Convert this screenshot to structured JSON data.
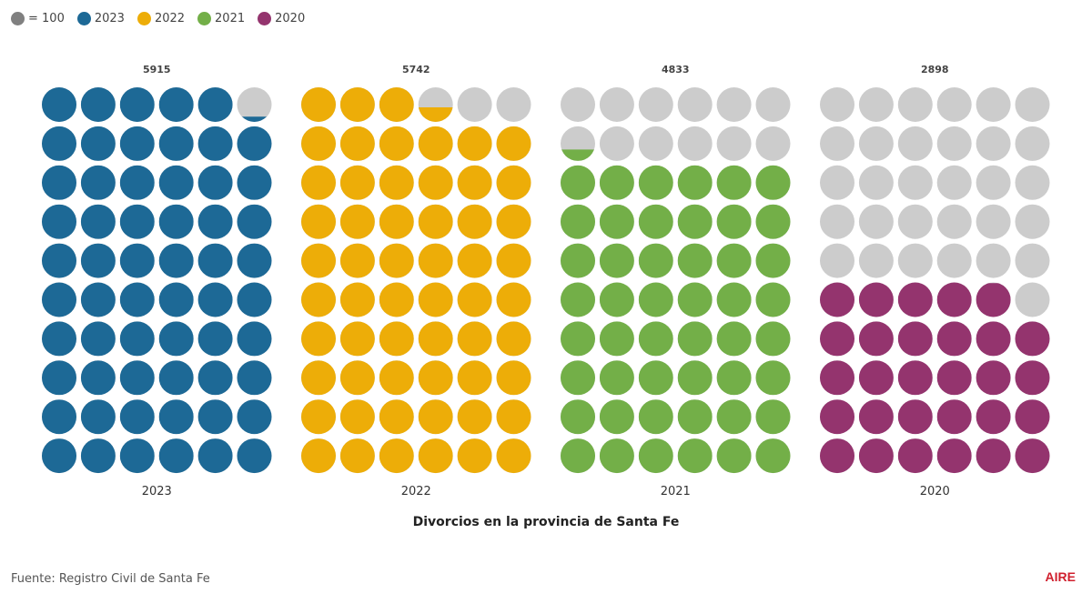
{
  "legend": {
    "unit_label": "= 100",
    "unit_color": "#808080",
    "items": [
      {
        "label": "2023",
        "color": "#1d6996"
      },
      {
        "label": "2022",
        "color": "#edad08"
      },
      {
        "label": "2021",
        "color": "#73af48"
      },
      {
        "label": "2020",
        "color": "#94346e"
      }
    ]
  },
  "chart_data": {
    "type": "waffle",
    "unit_value": 100,
    "empty_color": "#cccccc",
    "rows": 10,
    "cols": 6,
    "title": "Divorcios en la provincia de Santa Fe",
    "groups": [
      {
        "label": "2023",
        "value": 5915,
        "value_label": "5915",
        "color": "#1d6996"
      },
      {
        "label": "2022",
        "value": 5742,
        "value_label": "5742",
        "color": "#edad08"
      },
      {
        "label": "2021",
        "value": 4833,
        "value_label": "4833",
        "color": "#73af48"
      },
      {
        "label": "2020",
        "value": 2898,
        "value_label": "2898",
        "color": "#94346e"
      }
    ]
  },
  "footer": {
    "source": "Fuente: Registro Civil de Santa Fe",
    "logo": "AIRE"
  }
}
